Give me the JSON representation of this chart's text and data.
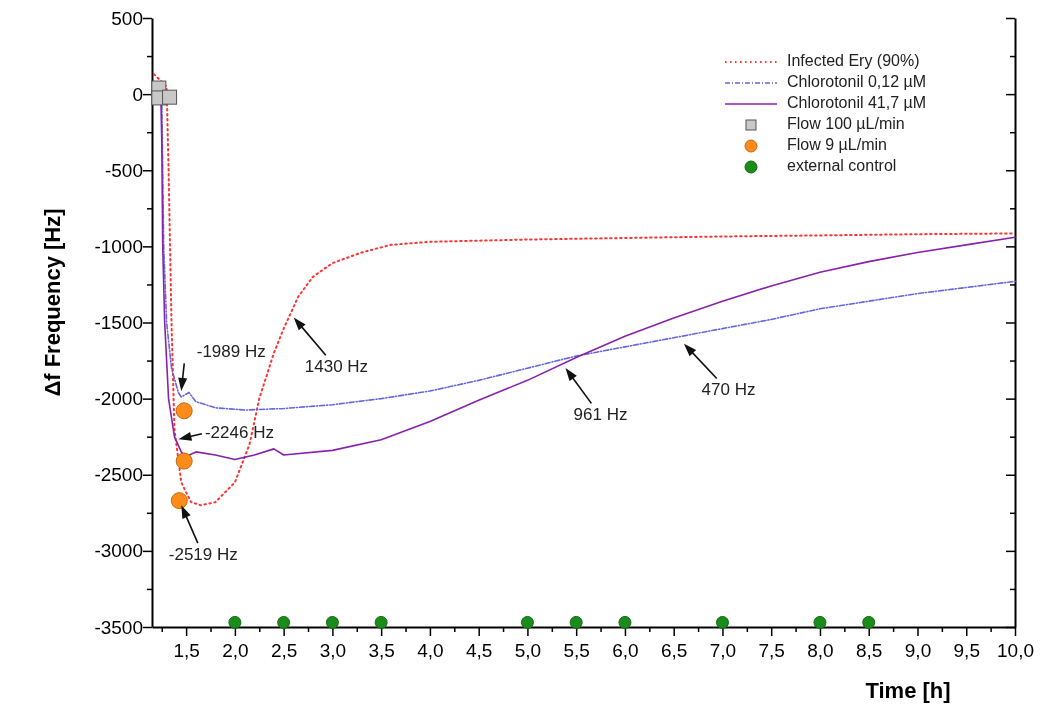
{
  "chart_data": {
    "type": "line",
    "xlabel": "Time [h]",
    "ylabel": "Δf Frequency [Hz]",
    "xlim": [
      1.15,
      10
    ],
    "ylim": [
      -3500,
      500
    ],
    "xticks": [
      {
        "value": 1.25,
        "label": null
      },
      {
        "value": 1.5,
        "label": "1,5"
      },
      {
        "value": 1.75,
        "label": null
      },
      {
        "value": 2,
        "label": "2,0"
      },
      {
        "value": 2.25,
        "label": null
      },
      {
        "value": 2.5,
        "label": "2,5"
      },
      {
        "value": 2.75,
        "label": null
      },
      {
        "value": 3,
        "label": "3,0"
      },
      {
        "value": 3.25,
        "label": null
      },
      {
        "value": 3.5,
        "label": "3,5"
      },
      {
        "value": 3.75,
        "label": null
      },
      {
        "value": 4,
        "label": "4,0"
      },
      {
        "value": 4.25,
        "label": null
      },
      {
        "value": 4.5,
        "label": "4,5"
      },
      {
        "value": 4.75,
        "label": null
      },
      {
        "value": 5,
        "label": "5,0"
      },
      {
        "value": 5.25,
        "label": null
      },
      {
        "value": 5.5,
        "label": "5,5"
      },
      {
        "value": 5.75,
        "label": null
      },
      {
        "value": 6,
        "label": "6,0"
      },
      {
        "value": 6.25,
        "label": null
      },
      {
        "value": 6.5,
        "label": "6,5"
      },
      {
        "value": 6.75,
        "label": null
      },
      {
        "value": 7,
        "label": "7,0"
      },
      {
        "value": 7.25,
        "label": null
      },
      {
        "value": 7.5,
        "label": "7,5"
      },
      {
        "value": 7.75,
        "label": null
      },
      {
        "value": 8,
        "label": "8,0"
      },
      {
        "value": 8.25,
        "label": null
      },
      {
        "value": 8.5,
        "label": "8,5"
      },
      {
        "value": 8.75,
        "label": null
      },
      {
        "value": 9,
        "label": "9,0"
      },
      {
        "value": 9.25,
        "label": null
      },
      {
        "value": 9.5,
        "label": "9,5"
      },
      {
        "value": 9.75,
        "label": null
      },
      {
        "value": 10,
        "label": "10,0"
      }
    ],
    "yticks": [
      -3500,
      {
        "value": -3250,
        "label": null
      },
      -3000,
      {
        "value": -2750,
        "label": null
      },
      -2500,
      {
        "value": -2250,
        "label": null
      },
      -2000,
      {
        "value": -1750,
        "label": null
      },
      -1500,
      {
        "value": -1250,
        "label": null
      },
      -1000,
      {
        "value": -750,
        "label": null
      },
      -500,
      {
        "value": -250,
        "label": null
      },
      0,
      {
        "value": 250,
        "label": null
      },
      500
    ],
    "legend": "top right",
    "grid": false,
    "series": [
      {
        "name": "Infected Ery (90%)",
        "color": "#ff3333",
        "line_style": "dotted",
        "marker": "none",
        "x": [
          1.17,
          1.3,
          1.32,
          1.35,
          1.38,
          1.45,
          1.55,
          1.65,
          1.8,
          2.0,
          2.15,
          2.25,
          2.4,
          2.5,
          2.65,
          2.8,
          3.0,
          3.3,
          3.6,
          4,
          5,
          6,
          7,
          8,
          9,
          10
        ],
        "values": [
          130,
          50,
          -500,
          -1500,
          -2200,
          -2550,
          -2680,
          -2700,
          -2680,
          -2550,
          -2300,
          -2000,
          -1700,
          -1540,
          -1330,
          -1200,
          -1110,
          -1040,
          -990,
          -970,
          -955,
          -945,
          -935,
          -928,
          -920,
          -915
        ]
      },
      {
        "name": "Chlorotonil 0,12 µM",
        "color": "#6666dd",
        "line_style": "dashed",
        "marker": "none",
        "x": [
          1.25,
          1.26,
          1.27,
          1.3,
          1.35,
          1.42,
          1.45,
          1.53,
          1.6,
          1.8,
          2.1,
          2.5,
          3,
          3.5,
          4,
          4.5,
          5,
          5.5,
          6,
          6.5,
          7,
          7.5,
          8,
          8.5,
          9,
          9.5,
          10
        ],
        "values": [
          0,
          -500,
          -1000,
          -1500,
          -1800,
          -1960,
          -1989,
          -1960,
          -2020,
          -2060,
          -2075,
          -2065,
          -2040,
          -2000,
          -1950,
          -1880,
          -1800,
          -1720,
          -1660,
          -1600,
          -1540,
          -1480,
          -1410,
          -1360,
          -1310,
          -1270,
          -1230
        ]
      },
      {
        "name": "Chlorotonil 41,7 µM",
        "color": "#8822aa",
        "line_style": "solid",
        "marker": "none",
        "x": [
          1.24,
          1.25,
          1.26,
          1.28,
          1.32,
          1.38,
          1.45,
          1.5,
          1.6,
          1.8,
          2.0,
          2.2,
          2.4,
          2.5,
          3.0,
          3.5,
          4.0,
          4.5,
          5,
          5.5,
          6,
          6.5,
          7,
          7.5,
          8,
          8.5,
          9,
          9.5,
          10
        ],
        "values": [
          0,
          -300,
          -1000,
          -1500,
          -2000,
          -2250,
          -2350,
          -2380,
          -2350,
          -2370,
          -2400,
          -2370,
          -2330,
          -2370,
          -2340,
          -2270,
          -2150,
          -2010,
          -1880,
          -1730,
          -1590,
          -1470,
          -1360,
          -1260,
          -1170,
          -1100,
          -1040,
          -990,
          -940
        ]
      },
      {
        "name": "Flow 100 µL/min",
        "type": "scatter",
        "color": "#c8c8c8",
        "marker": "square",
        "x": [
          1.22,
          1.22,
          1.33
        ],
        "values": [
          40,
          -25,
          -20
        ]
      },
      {
        "name": "Flow 9 µL/min",
        "type": "scatter",
        "color": "#ff8c1a",
        "marker": "circle",
        "x": [
          1.48,
          1.48,
          1.43
        ],
        "values": [
          -2080,
          -2410,
          -2670
        ]
      },
      {
        "name": "external control",
        "type": "scatter",
        "color": "#1a8c1a",
        "marker": "circle",
        "x": [
          2.0,
          2.5,
          3.0,
          3.5,
          5.0,
          5.5,
          6.0,
          7.0,
          8.0,
          8.5
        ],
        "values": [
          -3470,
          -3470,
          -3470,
          -3470,
          -3470,
          -3470,
          -3470,
          -3470,
          -3470,
          -3470
        ]
      }
    ],
    "annotations": [
      {
        "text": "-1989 Hz",
        "x": 1.45,
        "y": -1989
      },
      {
        "text": "-2246 Hz",
        "x": 1.37,
        "y": -2270
      },
      {
        "text": "-2519 Hz",
        "x": 1.43,
        "y": -2670
      },
      {
        "text": "1430 Hz",
        "x": 2.57,
        "y": -1442
      },
      {
        "text": "961 Hz",
        "x": 5.36,
        "y": -1772
      },
      {
        "text": "470 Hz",
        "x": 6.57,
        "y": -1615
      }
    ]
  }
}
